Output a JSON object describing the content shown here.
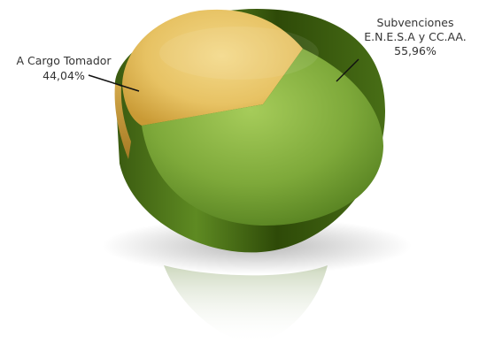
{
  "chart_data": {
    "type": "pie",
    "title": "",
    "slices": [
      {
        "label_lines": [
          "Subvenciones",
          "E.N.E.S.A y CC.AA."
        ],
        "value_label": "55,96%",
        "value": 55.96,
        "color": "#6f9a2e"
      },
      {
        "label_lines": [
          "A Cargo Tomador"
        ],
        "value_label": "44,04%",
        "value": 44.04,
        "color": "#e6bf5c"
      }
    ],
    "style": "3D pie with reflection",
    "legend": "none"
  }
}
